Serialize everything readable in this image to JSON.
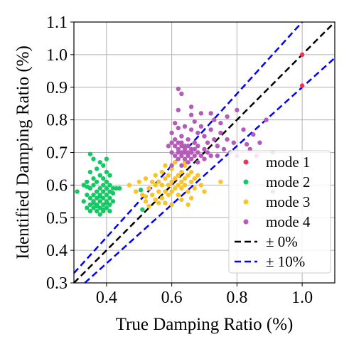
{
  "chart_data": {
    "type": "scatter",
    "title": "",
    "xlabel": "True Damping Ratio (%)",
    "ylabel": "Identified Damping Ratio (%)",
    "xlim": [
      0.3,
      1.1
    ],
    "ylim": [
      0.3,
      1.1
    ],
    "x_ticks": [
      0.4,
      0.6,
      0.8,
      1.0
    ],
    "x_tick_labels": [
      "0.4",
      "0.6",
      "0.8",
      "1.0"
    ],
    "y_ticks": [
      0.3,
      0.4,
      0.5,
      0.6,
      0.7,
      0.8,
      0.9,
      1.0,
      1.1
    ],
    "y_tick_labels": [
      "0.3",
      "0.4",
      "0.5",
      "0.6",
      "0.7",
      "0.8",
      "0.9",
      "1.0",
      "1.1"
    ],
    "grid": true,
    "legend_position": "bottom-right",
    "series": [
      {
        "name": "mode 1",
        "color": "#f0325a",
        "points": [
          [
            1.0,
            1.0
          ],
          [
            1.0,
            0.905
          ]
        ]
      },
      {
        "name": "mode 2",
        "color": "#14c864",
        "points": [
          [
            0.31,
            0.58
          ],
          [
            0.33,
            0.55
          ],
          [
            0.33,
            0.6
          ],
          [
            0.34,
            0.53
          ],
          [
            0.34,
            0.57
          ],
          [
            0.34,
            0.61
          ],
          [
            0.35,
            0.52
          ],
          [
            0.35,
            0.54
          ],
          [
            0.35,
            0.56
          ],
          [
            0.35,
            0.59
          ],
          [
            0.35,
            0.64
          ],
          [
            0.36,
            0.53
          ],
          [
            0.36,
            0.55
          ],
          [
            0.36,
            0.57
          ],
          [
            0.36,
            0.6
          ],
          [
            0.36,
            0.62
          ],
          [
            0.36,
            0.68
          ],
          [
            0.37,
            0.52
          ],
          [
            0.37,
            0.54
          ],
          [
            0.37,
            0.56
          ],
          [
            0.37,
            0.58
          ],
          [
            0.37,
            0.61
          ],
          [
            0.37,
            0.65
          ],
          [
            0.35,
            0.695
          ],
          [
            0.38,
            0.51
          ],
          [
            0.38,
            0.53
          ],
          [
            0.38,
            0.55
          ],
          [
            0.38,
            0.57
          ],
          [
            0.38,
            0.59
          ],
          [
            0.38,
            0.63
          ],
          [
            0.38,
            0.67
          ],
          [
            0.39,
            0.52
          ],
          [
            0.39,
            0.54
          ],
          [
            0.39,
            0.56
          ],
          [
            0.39,
            0.58
          ],
          [
            0.39,
            0.6
          ],
          [
            0.39,
            0.62
          ],
          [
            0.39,
            0.66
          ],
          [
            0.4,
            0.53
          ],
          [
            0.4,
            0.55
          ],
          [
            0.4,
            0.57
          ],
          [
            0.4,
            0.59
          ],
          [
            0.4,
            0.61
          ],
          [
            0.4,
            0.64
          ],
          [
            0.4,
            0.68
          ],
          [
            0.41,
            0.52
          ],
          [
            0.41,
            0.54
          ],
          [
            0.41,
            0.56
          ],
          [
            0.41,
            0.58
          ],
          [
            0.41,
            0.6
          ],
          [
            0.41,
            0.63
          ],
          [
            0.42,
            0.59
          ],
          [
            0.42,
            0.55
          ],
          [
            0.43,
            0.59
          ],
          [
            0.44,
            0.59
          ],
          [
            0.37,
            0.535
          ],
          [
            0.39,
            0.525
          ],
          [
            0.36,
            0.545
          ],
          [
            0.4,
            0.545
          ],
          [
            0.38,
            0.565
          ],
          [
            0.34,
            0.595
          ],
          [
            0.42,
            0.575
          ],
          [
            0.51,
            0.525
          ],
          [
            0.505,
            0.585
          ]
        ]
      },
      {
        "name": "mode 3",
        "color": "#fac328",
        "points": [
          [
            0.47,
            0.6
          ],
          [
            0.49,
            0.58
          ],
          [
            0.5,
            0.61
          ],
          [
            0.51,
            0.57
          ],
          [
            0.52,
            0.62
          ],
          [
            0.52,
            0.55
          ],
          [
            0.53,
            0.59
          ],
          [
            0.54,
            0.61
          ],
          [
            0.54,
            0.57
          ],
          [
            0.55,
            0.6
          ],
          [
            0.55,
            0.63
          ],
          [
            0.56,
            0.58
          ],
          [
            0.56,
            0.61
          ],
          [
            0.57,
            0.56
          ],
          [
            0.57,
            0.6
          ],
          [
            0.57,
            0.64
          ],
          [
            0.58,
            0.58
          ],
          [
            0.58,
            0.62
          ],
          [
            0.58,
            0.66
          ],
          [
            0.59,
            0.57
          ],
          [
            0.59,
            0.6
          ],
          [
            0.59,
            0.63
          ],
          [
            0.6,
            0.58
          ],
          [
            0.6,
            0.61
          ],
          [
            0.6,
            0.65
          ],
          [
            0.61,
            0.59
          ],
          [
            0.61,
            0.62
          ],
          [
            0.61,
            0.67
          ],
          [
            0.62,
            0.6
          ],
          [
            0.62,
            0.63
          ],
          [
            0.62,
            0.57
          ],
          [
            0.63,
            0.61
          ],
          [
            0.63,
            0.64
          ],
          [
            0.63,
            0.59
          ],
          [
            0.64,
            0.62
          ],
          [
            0.64,
            0.6
          ],
          [
            0.64,
            0.66
          ],
          [
            0.65,
            0.63
          ],
          [
            0.65,
            0.58
          ],
          [
            0.66,
            0.61
          ],
          [
            0.66,
            0.64
          ],
          [
            0.67,
            0.62
          ],
          [
            0.67,
            0.59
          ],
          [
            0.68,
            0.63
          ],
          [
            0.69,
            0.6
          ],
          [
            0.61,
            0.72
          ],
          [
            0.64,
            0.67
          ],
          [
            0.52,
            0.565
          ],
          [
            0.55,
            0.555
          ],
          [
            0.66,
            0.56
          ],
          [
            0.7,
            0.58
          ],
          [
            0.75,
            0.61
          ],
          [
            0.56,
            0.545
          ],
          [
            0.58,
            0.545
          ],
          [
            0.6,
            0.54
          ],
          [
            0.53,
            0.535
          ],
          [
            0.63,
            0.555
          ],
          [
            0.65,
            0.54
          ]
        ]
      },
      {
        "name": "mode 4",
        "color": "#b45ab9",
        "points": [
          [
            0.62,
            0.895
          ],
          [
            0.63,
            0.88
          ],
          [
            0.66,
            0.84
          ],
          [
            0.69,
            0.82
          ],
          [
            0.72,
            0.82
          ],
          [
            0.73,
            0.8
          ],
          [
            0.75,
            0.79
          ],
          [
            0.77,
            0.81
          ],
          [
            0.8,
            0.83
          ],
          [
            0.82,
            0.77
          ],
          [
            0.84,
            0.71
          ],
          [
            0.86,
            0.69
          ],
          [
            0.87,
            0.73
          ],
          [
            0.89,
            0.8
          ],
          [
            0.91,
            0.7
          ],
          [
            0.91,
            0.58
          ],
          [
            0.6,
            0.76
          ],
          [
            0.61,
            0.79
          ],
          [
            0.62,
            0.83
          ],
          [
            0.63,
            0.75
          ],
          [
            0.64,
            0.78
          ],
          [
            0.65,
            0.74
          ],
          [
            0.66,
            0.77
          ],
          [
            0.67,
            0.73
          ],
          [
            0.68,
            0.76
          ],
          [
            0.69,
            0.78
          ],
          [
            0.7,
            0.75
          ],
          [
            0.71,
            0.73
          ],
          [
            0.72,
            0.77
          ],
          [
            0.73,
            0.74
          ],
          [
            0.74,
            0.72
          ],
          [
            0.75,
            0.76
          ],
          [
            0.76,
            0.71
          ],
          [
            0.77,
            0.74
          ],
          [
            0.78,
            0.7
          ],
          [
            0.79,
            0.73
          ],
          [
            0.8,
            0.69
          ],
          [
            0.6,
            0.73
          ],
          [
            0.6,
            0.7
          ],
          [
            0.61,
            0.69
          ],
          [
            0.61,
            0.72
          ],
          [
            0.61,
            0.74
          ],
          [
            0.62,
            0.68
          ],
          [
            0.62,
            0.7
          ],
          [
            0.62,
            0.71
          ],
          [
            0.62,
            0.73
          ],
          [
            0.63,
            0.69
          ],
          [
            0.63,
            0.7
          ],
          [
            0.63,
            0.72
          ],
          [
            0.63,
            0.73
          ],
          [
            0.64,
            0.68
          ],
          [
            0.64,
            0.7
          ],
          [
            0.64,
            0.71
          ],
          [
            0.64,
            0.72
          ],
          [
            0.65,
            0.69
          ],
          [
            0.65,
            0.7
          ],
          [
            0.65,
            0.72
          ],
          [
            0.66,
            0.68
          ],
          [
            0.66,
            0.7
          ],
          [
            0.66,
            0.71
          ],
          [
            0.67,
            0.69
          ],
          [
            0.67,
            0.71
          ],
          [
            0.68,
            0.7
          ],
          [
            0.68,
            0.72
          ],
          [
            0.69,
            0.69
          ],
          [
            0.7,
            0.71
          ],
          [
            0.71,
            0.7
          ],
          [
            0.59,
            0.72
          ],
          [
            0.6,
            0.66
          ],
          [
            0.63,
            0.66
          ],
          [
            0.65,
            0.67
          ],
          [
            0.68,
            0.67
          ],
          [
            0.72,
            0.69
          ],
          [
            0.74,
            0.69
          ],
          [
            0.7,
            0.68
          ],
          [
            0.66,
            0.815
          ],
          [
            0.67,
            0.795
          ],
          [
            0.62,
            0.775
          ],
          [
            0.85,
            0.755
          ],
          [
            0.83,
            0.725
          ]
        ]
      }
    ],
    "reference_lines": [
      {
        "name": "± 0%",
        "factor": 1.0,
        "color": "#000000",
        "style": "dashed"
      },
      {
        "name": "± 10%",
        "factors": [
          1.1,
          0.9
        ],
        "color": "#0000ff",
        "style": "dashed"
      }
    ]
  }
}
